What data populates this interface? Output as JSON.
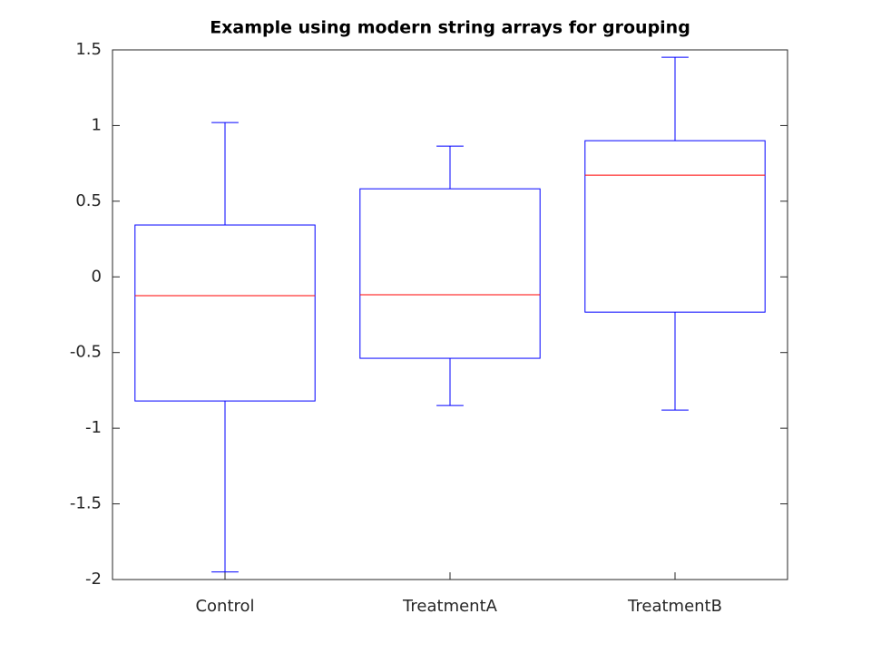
{
  "chart_data": {
    "type": "box",
    "title": "Example using modern string arrays for grouping",
    "categories": [
      "Control",
      "TreatmentA",
      "TreatmentB"
    ],
    "boxes": [
      {
        "min": -1.95,
        "q1": -0.82,
        "median": -0.124,
        "q3": 0.343,
        "max": 1.02
      },
      {
        "min": -0.85,
        "q1": -0.538,
        "median": -0.118,
        "q3": 0.582,
        "max": 0.864
      },
      {
        "min": -0.88,
        "q1": -0.233,
        "median": 0.672,
        "q3": 0.9,
        "max": 1.451
      }
    ],
    "color": "#0000ff",
    "median_color": "#ff0000",
    "ylim": [
      -2,
      1.5
    ],
    "yticks": [
      -2,
      -1.5,
      -1,
      -0.5,
      0,
      0.5,
      1,
      1.5
    ],
    "grid": false
  }
}
